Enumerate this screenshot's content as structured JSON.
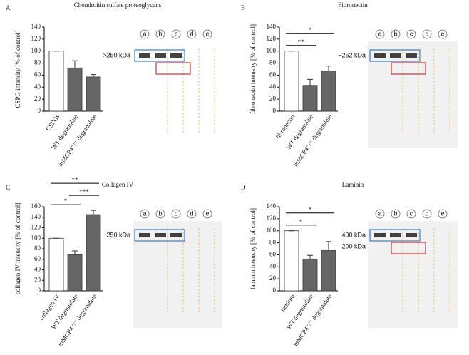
{
  "chart_data": [
    {
      "type": "bar",
      "panel": "A",
      "title": "Chondroitin sulfate proteoglycans",
      "ylabel": "CSPG intensity [% of control]",
      "categories": [
        "CSPGs",
        "WT degranulate",
        "mMCP4⁻/⁻ degranulate"
      ],
      "values": [
        100,
        72,
        57
      ],
      "errors": [
        0,
        12,
        4
      ],
      "colors": [
        "#ffffff",
        "#666666",
        "#666666"
      ],
      "ylim": [
        0,
        140
      ],
      "yticks": [
        0,
        20,
        40,
        60,
        80,
        100,
        120,
        140
      ],
      "significance": [],
      "lanes": [
        "a",
        "b",
        "c",
        "d",
        "e"
      ],
      "markers": [
        ">250 kDa"
      ]
    },
    {
      "type": "bar",
      "panel": "B",
      "title": "Fibronectin",
      "ylabel": "fibronectin intensity [% of control]",
      "categories": [
        "fibronectin",
        "WT degranulate",
        "mMCP4⁻/⁻ degranulate"
      ],
      "values": [
        100,
        43,
        67
      ],
      "errors": [
        0,
        10,
        8
      ],
      "colors": [
        "#ffffff",
        "#666666",
        "#666666"
      ],
      "ylim": [
        0,
        140
      ],
      "yticks": [
        0,
        20,
        40,
        60,
        80,
        100,
        120,
        140
      ],
      "significance": [
        {
          "label": "**",
          "between": [
            "fibronectin",
            "WT degranulate"
          ]
        },
        {
          "label": "*",
          "between": [
            "fibronectin",
            "mMCP4⁻/⁻ degranulate"
          ]
        }
      ],
      "lanes": [
        "a",
        "b",
        "c",
        "d",
        "e"
      ],
      "markers": [
        "~262 kDa"
      ]
    },
    {
      "type": "bar",
      "panel": "C",
      "title": "Collagen IV",
      "ylabel": "collagen IV intensity [% of control]",
      "categories": [
        "collagen IV",
        "WT degranulate",
        "mMCP4⁻/⁻ degranulate"
      ],
      "values": [
        100,
        69,
        145
      ],
      "errors": [
        0,
        7,
        8
      ],
      "colors": [
        "#ffffff",
        "#666666",
        "#666666"
      ],
      "ylim": [
        0,
        160
      ],
      "yticks": [
        0,
        20,
        40,
        60,
        80,
        100,
        120,
        140,
        160
      ],
      "significance": [
        {
          "label": "*",
          "between": [
            "collagen IV",
            "WT degranulate"
          ]
        },
        {
          "label": "***",
          "between": [
            "WT degranulate",
            "mMCP4⁻/⁻ degranulate"
          ]
        },
        {
          "label": "**",
          "between": [
            "collagen IV",
            "mMCP4⁻/⁻ degranulate"
          ]
        }
      ],
      "lanes": [
        "a",
        "b",
        "c",
        "d",
        "e"
      ],
      "markers": [
        "~250 kDa"
      ]
    },
    {
      "type": "bar",
      "panel": "D",
      "title": "Laminin",
      "ylabel": "laminin intensity [% of control]",
      "categories": [
        "laminin",
        "WT degranulate",
        "mMCP4⁻/⁻ degranulate"
      ],
      "values": [
        100,
        53,
        67
      ],
      "errors": [
        0,
        6,
        15
      ],
      "colors": [
        "#ffffff",
        "#666666",
        "#666666"
      ],
      "ylim": [
        0,
        140
      ],
      "yticks": [
        0,
        20,
        40,
        60,
        80,
        100,
        120,
        140
      ],
      "significance": [
        {
          "label": "*",
          "between": [
            "laminin",
            "WT degranulate"
          ]
        },
        {
          "label": "*",
          "between": [
            "laminin",
            "mMCP4⁻/⁻ degranulate"
          ]
        }
      ],
      "lanes": [
        "a",
        "b",
        "c",
        "d",
        "e"
      ],
      "markers": [
        "400 kDa",
        "200 kDa"
      ]
    }
  ]
}
